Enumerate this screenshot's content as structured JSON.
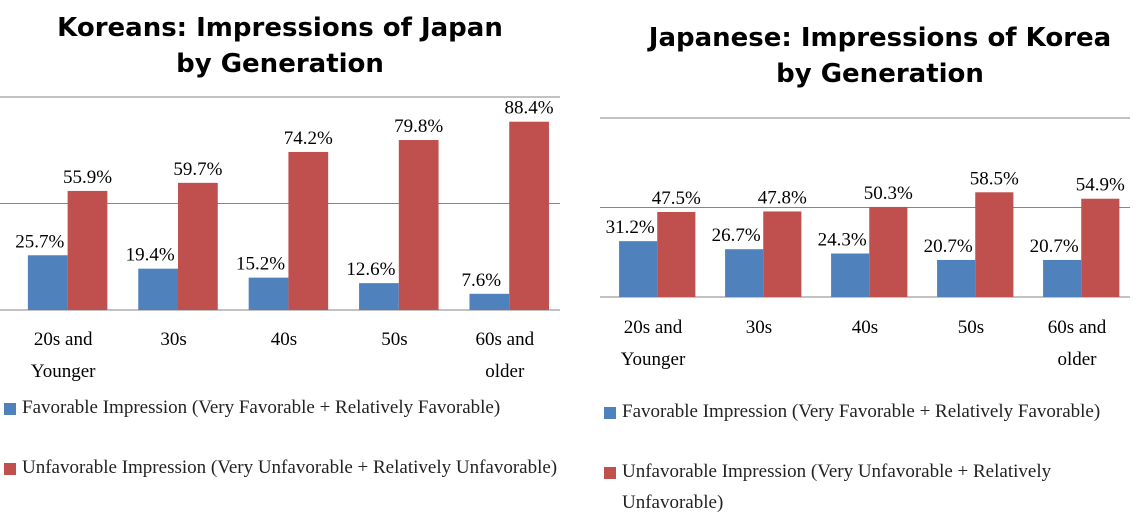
{
  "chart_data": [
    {
      "type": "bar",
      "title": "Koreans: Impressions of Japan by Generation",
      "categories": [
        "20s and Younger",
        "30s",
        "40s",
        "50s",
        "60s and older"
      ],
      "series": [
        {
          "name": "Favorable Impression (Very Favorable + Relatively Favorable)",
          "color": "#4f81bd",
          "values": [
            25.7,
            19.4,
            15.2,
            12.6,
            7.6
          ],
          "value_labels": [
            "25.7%",
            "19.4%",
            "15.2%",
            "12.6%",
            "7.6%"
          ]
        },
        {
          "name": "Unfavorable Impression (Very Unfavorable + Relatively Unfavorable)",
          "color": "#c0504d",
          "values": [
            55.9,
            59.7,
            74.2,
            79.8,
            88.4
          ],
          "value_labels": [
            "55.9%",
            "59.7%",
            "74.2%",
            "79.8%",
            "88.4%"
          ]
        }
      ],
      "ylim": [
        0,
        100
      ],
      "yticks": [
        0,
        50,
        100
      ],
      "grid": true
    },
    {
      "type": "bar",
      "title": "Japanese: Impressions of Korea by Generation",
      "categories": [
        "20s and Younger",
        "30s",
        "40s",
        "50s",
        "60s and older"
      ],
      "series": [
        {
          "name": "Favorable Impression (Very Favorable + Relatively Favorable)",
          "color": "#4f81bd",
          "values": [
            31.2,
            26.7,
            24.3,
            20.7,
            20.7
          ],
          "value_labels": [
            "31.2%",
            "26.7%",
            "24.3%",
            "20.7%",
            "20.7%"
          ]
        },
        {
          "name": "Unfavorable Impression (Very Unfavorable + Relatively Unfavorable)",
          "color": "#c0504d",
          "values": [
            47.5,
            47.8,
            50.3,
            58.5,
            54.9
          ],
          "value_labels": [
            "47.5%",
            "47.8%",
            "50.3%",
            "58.5%",
            "54.9%"
          ]
        }
      ],
      "ylim": [
        0,
        100
      ],
      "yticks": [
        0,
        50,
        100
      ],
      "grid": true
    }
  ]
}
